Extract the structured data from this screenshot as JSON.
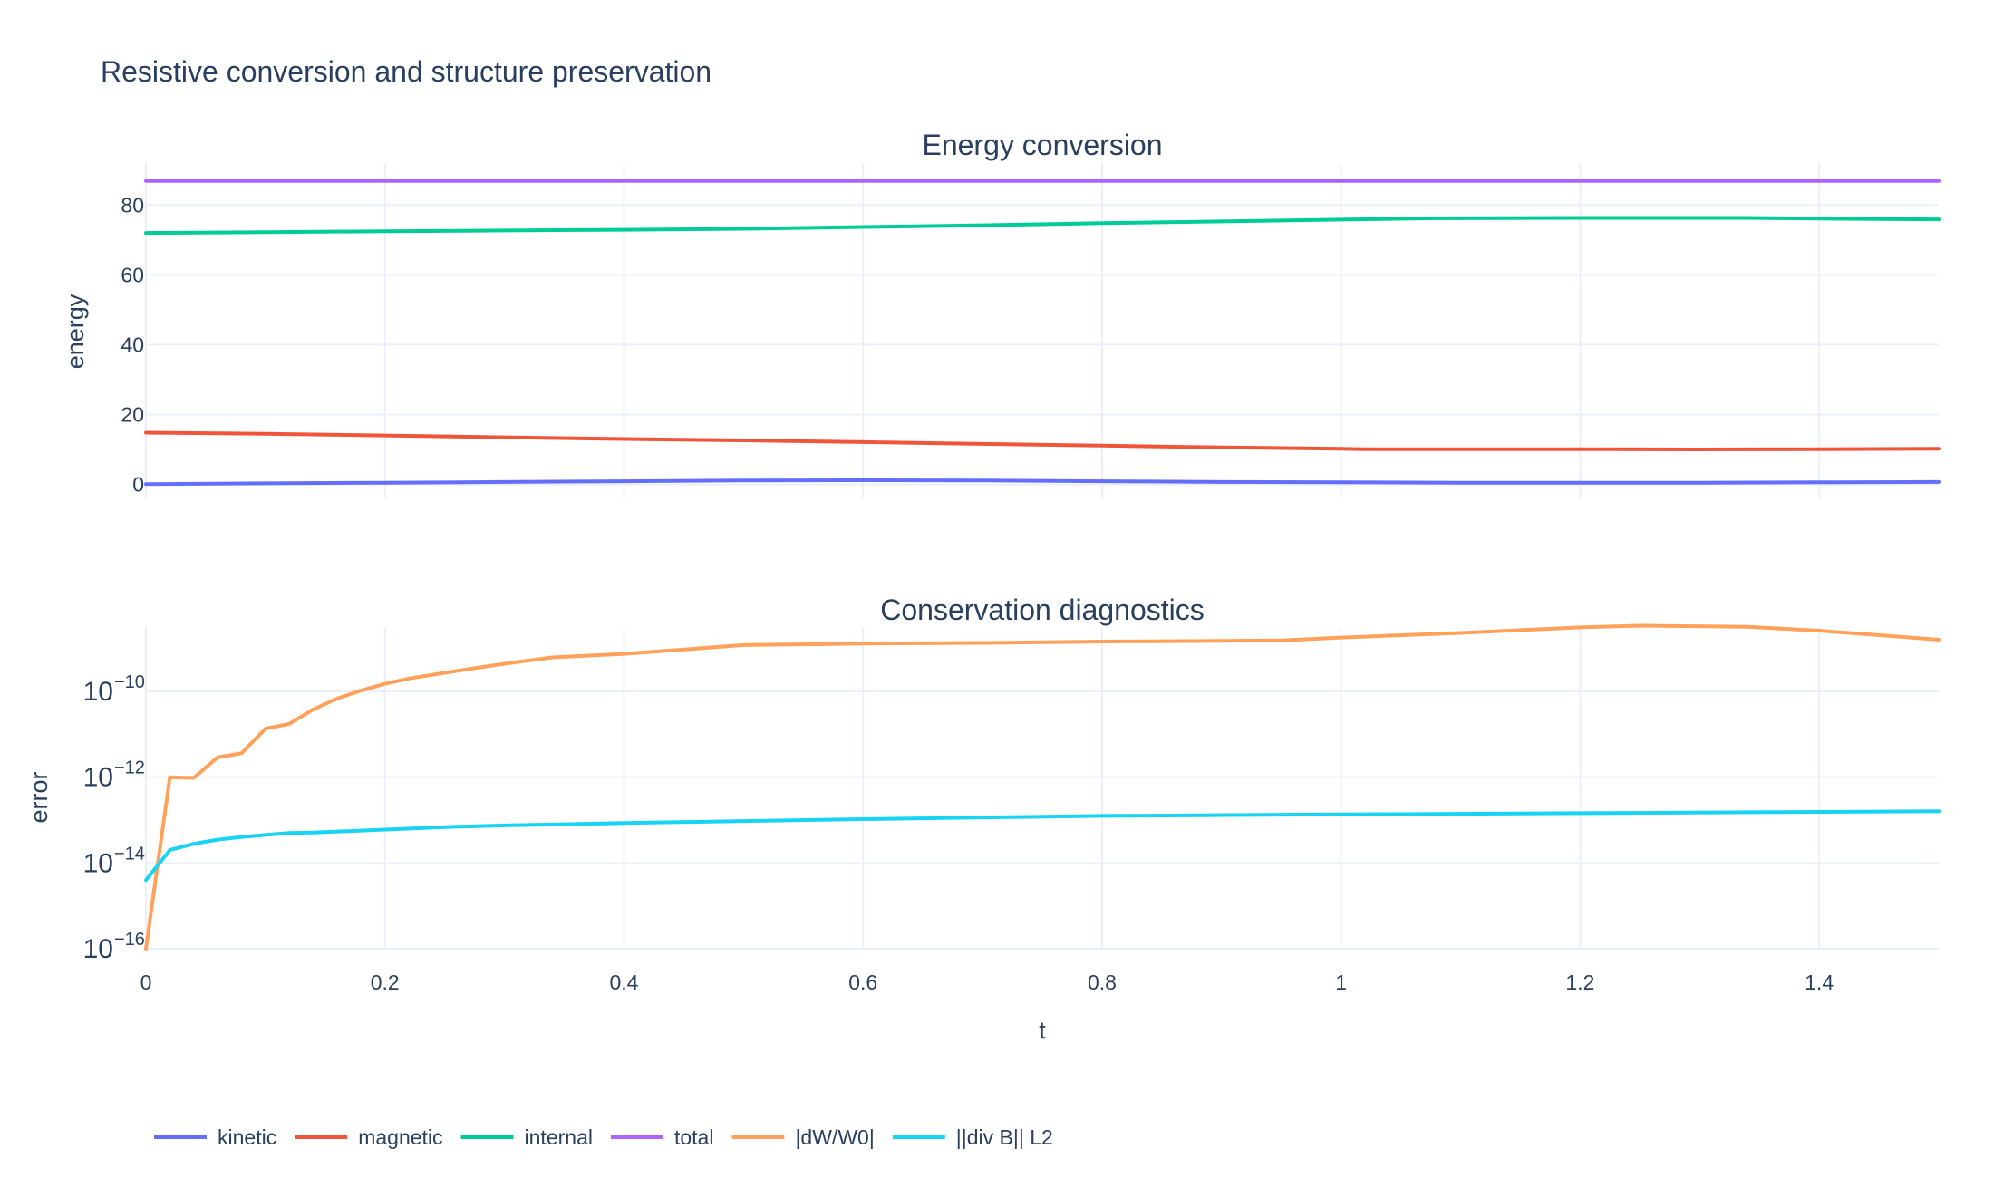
{
  "title": "Resistive conversion and structure preservation",
  "chart_data": [
    {
      "type": "line",
      "title": "Energy conversion",
      "xlabel": "",
      "ylabel": "energy",
      "xlim": [
        0,
        1.5
      ],
      "ylim": [
        -4,
        92
      ],
      "y_ticks": [
        0,
        20,
        40,
        60,
        80
      ],
      "x_ticks": [
        0,
        0.2,
        0.4,
        0.6,
        0.8,
        1,
        1.2,
        1.4
      ],
      "grid": true,
      "series": [
        {
          "name": "kinetic",
          "color": "#636efa",
          "x": [
            0,
            0.1,
            0.2,
            0.3,
            0.4,
            0.5,
            0.6,
            0.7,
            0.8,
            0.9,
            1.0,
            1.1,
            1.2,
            1.3,
            1.4,
            1.5
          ],
          "y": [
            0.1,
            0.3,
            0.5,
            0.7,
            0.9,
            1.1,
            1.2,
            1.1,
            0.9,
            0.7,
            0.6,
            0.5,
            0.5,
            0.5,
            0.6,
            0.7
          ]
        },
        {
          "name": "magnetic",
          "color": "#ef553b",
          "x": [
            0,
            0.1,
            0.2,
            0.3,
            0.4,
            0.5,
            0.6,
            0.7,
            0.8,
            0.9,
            1.0,
            1.02,
            1.1,
            1.2,
            1.3,
            1.4,
            1.5
          ],
          "y": [
            14.8,
            14.5,
            14.0,
            13.5,
            13.0,
            12.6,
            12.1,
            11.6,
            11.1,
            10.6,
            10.2,
            10.1,
            10.1,
            10.1,
            10.0,
            10.1,
            10.2
          ]
        },
        {
          "name": "internal",
          "color": "#00cc96",
          "x": [
            0,
            0.1,
            0.2,
            0.3,
            0.4,
            0.5,
            0.6,
            0.7,
            0.8,
            0.9,
            1.0,
            1.08,
            1.2,
            1.34,
            1.4,
            1.5
          ],
          "y": [
            72.0,
            72.2,
            72.5,
            72.7,
            72.9,
            73.2,
            73.7,
            74.2,
            74.8,
            75.3,
            75.8,
            76.2,
            76.3,
            76.3,
            76.1,
            75.9
          ]
        },
        {
          "name": "total",
          "color": "#ab63fa",
          "x": [
            0,
            0.5,
            1.0,
            1.5
          ],
          "y": [
            86.9,
            86.9,
            86.9,
            86.9
          ]
        }
      ]
    },
    {
      "type": "line",
      "title": "Conservation diagnostics",
      "xlabel": "t",
      "ylabel": "error",
      "xlim": [
        0,
        1.5
      ],
      "y_log_range": [
        -16,
        -8.5
      ],
      "y_scale": "log",
      "y_tick_exponents": [
        -16,
        -14,
        -12,
        -10
      ],
      "x_ticks": [
        0,
        0.2,
        0.4,
        0.6,
        0.8,
        1,
        1.2,
        1.4
      ],
      "grid": true,
      "series": [
        {
          "name": "|dW/W0|",
          "color": "#ffa15a",
          "x": [
            0,
            0.02,
            0.04,
            0.06,
            0.08,
            0.1,
            0.12,
            0.14,
            0.16,
            0.18,
            0.2,
            0.22,
            0.26,
            0.3,
            0.34,
            0.4,
            0.5,
            0.6,
            0.7,
            0.8,
            0.9,
            0.95,
            1.0,
            1.1,
            1.2,
            1.25,
            1.34,
            1.4,
            1.5
          ],
          "y": [
            1e-16,
            1e-12,
            9.6e-13,
            2.9e-12,
            3.6e-12,
            1.35e-11,
            1.75e-11,
            3.8e-11,
            6.8e-11,
            1.05e-10,
            1.5e-10,
            2e-10,
            3e-10,
            4.4e-10,
            6.2e-10,
            7.5e-10,
            1.2e-09,
            1.3e-09,
            1.35e-09,
            1.45e-09,
            1.5e-09,
            1.55e-09,
            1.8e-09,
            2.3e-09,
            3.1e-09,
            3.4e-09,
            3.2e-09,
            2.6e-09,
            1.6e-09
          ]
        },
        {
          "name": "||div B|| L2",
          "color": "#19d3f3",
          "x": [
            0,
            0.02,
            0.04,
            0.06,
            0.08,
            0.1,
            0.12,
            0.14,
            0.2,
            0.26,
            0.3,
            0.4,
            0.5,
            0.6,
            0.7,
            0.8,
            1.0,
            1.2,
            1.4,
            1.5
          ],
          "y": [
            4e-15,
            2e-14,
            2.8e-14,
            3.5e-14,
            4e-14,
            4.5e-14,
            5e-14,
            5.1e-14,
            6e-14,
            7e-14,
            7.5e-14,
            8.5e-14,
            9.5e-14,
            1.05e-13,
            1.15e-13,
            1.25e-13,
            1.35e-13,
            1.45e-13,
            1.55e-13,
            1.6e-13
          ]
        }
      ]
    }
  ],
  "legend": {
    "placement": "bottom-left",
    "entries": [
      {
        "name": "kinetic",
        "color": "#636efa"
      },
      {
        "name": "magnetic",
        "color": "#ef553b"
      },
      {
        "name": "internal",
        "color": "#00cc96"
      },
      {
        "name": "total",
        "color": "#ab63fa"
      },
      {
        "name": "|dW/W0|",
        "color": "#ffa15a"
      },
      {
        "name": "||div B|| L2",
        "color": "#19d3f3"
      }
    ]
  }
}
